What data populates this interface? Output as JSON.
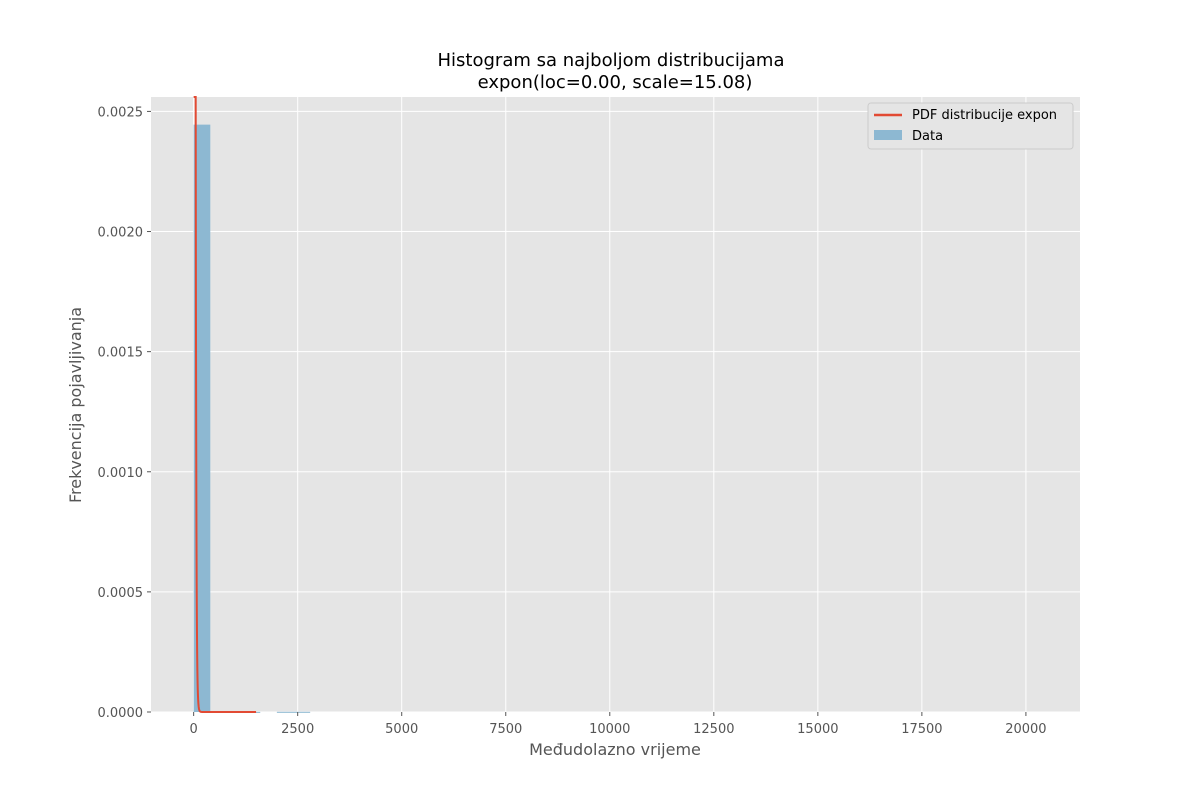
{
  "chart_data": {
    "type": "bar",
    "title_line1": "Histogram sa najboljom distribucijama",
    "title_line2": "expon(loc=0.00, scale=15.08)",
    "xlabel": "Međudolazno vrijeme",
    "ylabel": "Frekvencija pojavljivanja",
    "xlim": [
      -1025,
      21300
    ],
    "ylim": [
      0,
      0.00256
    ],
    "xticks": [
      0,
      2500,
      5000,
      7500,
      10000,
      12500,
      15000,
      17500,
      20000
    ],
    "xtick_labels": [
      "0",
      "2500",
      "5000",
      "7500",
      "10000",
      "12500",
      "15000",
      "17500",
      "20000"
    ],
    "yticks": [
      0,
      0.0005,
      0.001,
      0.0015,
      0.002,
      0.0025
    ],
    "ytick_labels": [
      "0.0000",
      "0.0005",
      "0.0010",
      "0.0015",
      "0.0020",
      "0.0025"
    ],
    "grid": true,
    "legend_position": "top-right",
    "histogram": {
      "name": "Data",
      "color": "#8db8d2",
      "bins": [
        {
          "x0": 0,
          "x1": 400,
          "density": 0.002445
        },
        {
          "x0": 400,
          "x1": 800,
          "density": 5e-07
        },
        {
          "x0": 800,
          "x1": 1200,
          "density": 5e-07
        },
        {
          "x0": 1200,
          "x1": 1600,
          "density": 5e-07
        },
        {
          "x0": 2000,
          "x1": 2800,
          "density": 8e-07
        }
      ]
    },
    "pdf_line": {
      "name": "PDF distribucije expon",
      "color": "#e24a33",
      "loc": 0.0,
      "scale": 15.08,
      "x_max": 1500
    }
  }
}
